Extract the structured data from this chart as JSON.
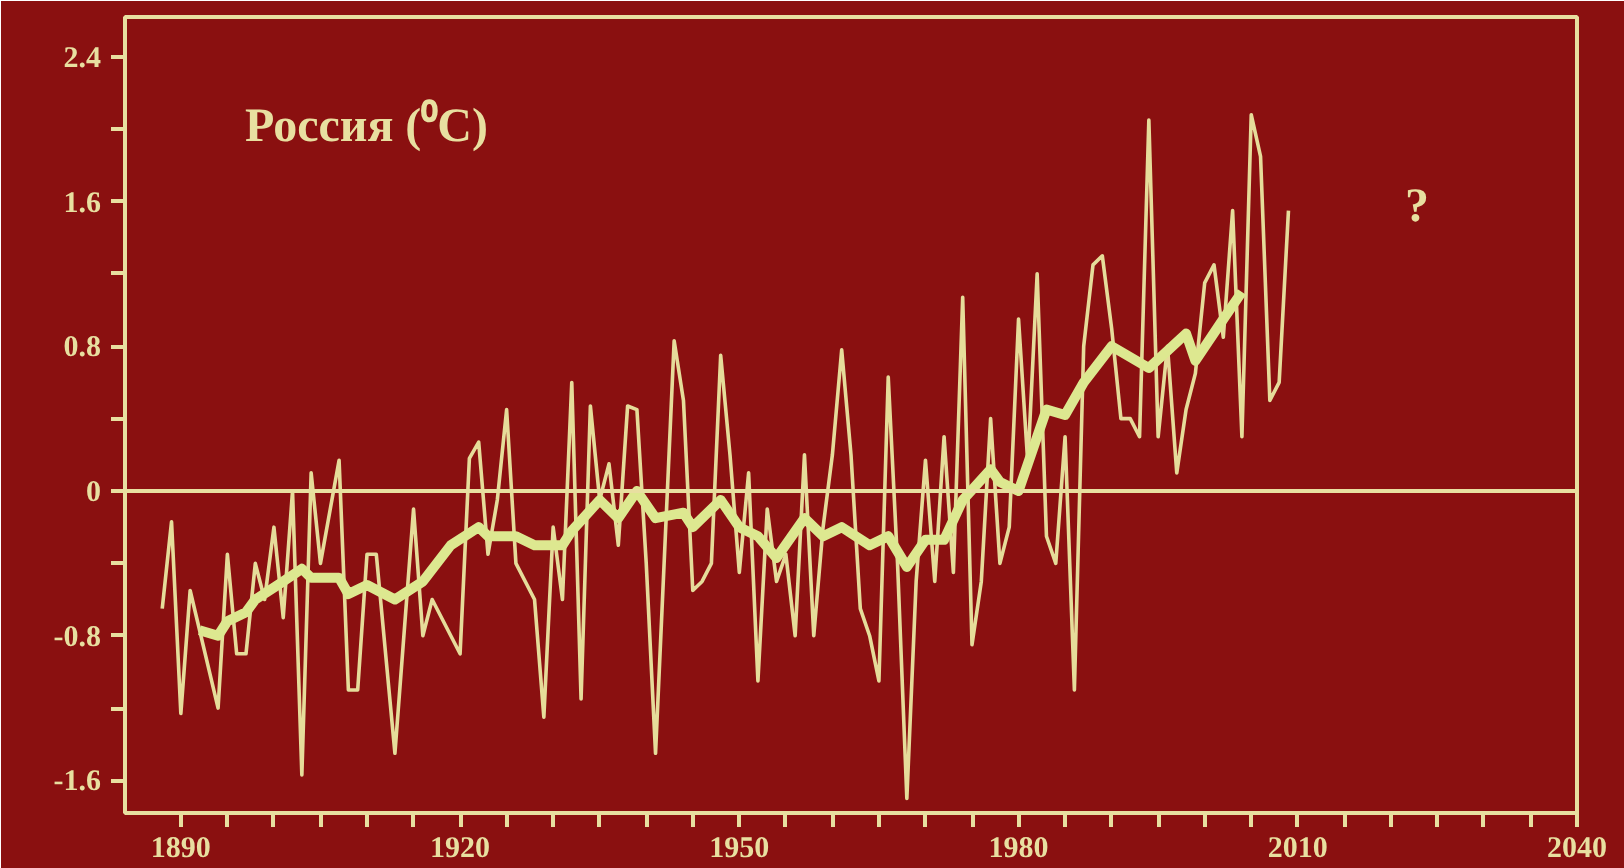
{
  "chart_data": {
    "type": "line",
    "title": "Россия (⁰C)",
    "annotations": [
      "?"
    ],
    "xlim": [
      1884,
      2040
    ],
    "ylim": [
      -1.78,
      2.62
    ],
    "xticks": [
      1890,
      {
        "value": 1895,
        "label": null
      },
      {
        "value": 1900,
        "label": null
      },
      {
        "value": 1905,
        "label": null
      },
      {
        "value": 1910,
        "label": null
      },
      {
        "value": 1915,
        "label": null
      },
      1920,
      {
        "value": 1925,
        "label": null
      },
      {
        "value": 1930,
        "label": null
      },
      {
        "value": 1935,
        "label": null
      },
      {
        "value": 1940,
        "label": null
      },
      {
        "value": 1945,
        "label": null
      },
      1950,
      {
        "value": 1955,
        "label": null
      },
      {
        "value": 1960,
        "label": null
      },
      {
        "value": 1965,
        "label": null
      },
      {
        "value": 1970,
        "label": null
      },
      {
        "value": 1975,
        "label": null
      },
      1980,
      {
        "value": 1985,
        "label": null
      },
      {
        "value": 1990,
        "label": null
      },
      {
        "value": 1995,
        "label": null
      },
      {
        "value": 2000,
        "label": null
      },
      {
        "value": 2005,
        "label": null
      },
      2010,
      {
        "value": 2015,
        "label": null
      },
      {
        "value": 2020,
        "label": null
      },
      {
        "value": 2025,
        "label": null
      },
      {
        "value": 2030,
        "label": null
      },
      {
        "value": 2035,
        "label": null
      },
      2040
    ],
    "yticks": [
      -1.6,
      {
        "value": -1.2,
        "label": null
      },
      -0.8,
      {
        "value": -0.4,
        "label": null
      },
      0,
      {
        "value": 0.4,
        "label": null
      },
      0.8,
      {
        "value": 1.2,
        "label": null
      },
      1.6,
      {
        "value": 2.0,
        "label": null
      },
      2.4
    ],
    "grid": false,
    "marker": "none",
    "line_style": "solid",
    "ref_lines": [
      {
        "axis": "y",
        "value": 0,
        "color": "#e8dfa0"
      }
    ],
    "series": [
      {
        "color": "#e6dc9a",
        "x": [
          1888,
          1889,
          1890,
          1891,
          1894,
          1895,
          1896,
          1897,
          1898,
          1899,
          1900,
          1901,
          1902,
          1903,
          1904,
          1905,
          1907,
          1908,
          1909,
          1910,
          1911,
          1913,
          1915,
          1916,
          1917,
          1920,
          1921,
          1922,
          1923,
          1924,
          1925,
          1926,
          1928,
          1929,
          1930,
          1931,
          1932,
          1933,
          1934,
          1935,
          1936,
          1937,
          1938,
          1939,
          1940,
          1941,
          1943,
          1944,
          1945,
          1946,
          1947,
          1948,
          1949,
          1950,
          1951,
          1952,
          1953,
          1954,
          1955,
          1956,
          1957,
          1958,
          1959,
          1960,
          1961,
          1962,
          1963,
          1964,
          1965,
          1966,
          1967,
          1968,
          1969,
          1970,
          1971,
          1972,
          1973,
          1974,
          1975,
          1976,
          1977,
          1978,
          1979,
          1980,
          1981,
          1982,
          1983,
          1984,
          1985,
          1986,
          1987,
          1988,
          1989,
          1990,
          1991,
          1992,
          1993,
          1994,
          1995,
          1996,
          1997,
          1998,
          1999,
          2000,
          2001,
          2002,
          2003,
          2004,
          2005,
          2006,
          2007,
          2008,
          2009
        ],
        "values": [
          -0.65,
          -0.17,
          -1.23,
          -0.55,
          -1.2,
          -0.35,
          -0.9,
          -0.9,
          -0.4,
          -0.6,
          -0.2,
          -0.7,
          0.0,
          -1.57,
          0.1,
          -0.4,
          0.17,
          -1.1,
          -1.1,
          -0.35,
          -0.35,
          -1.45,
          -0.1,
          -0.8,
          -0.6,
          -0.9,
          0.18,
          0.27,
          -0.35,
          -0.05,
          0.45,
          -0.4,
          -0.6,
          -1.25,
          -0.2,
          -0.6,
          0.6,
          -1.15,
          0.47,
          -0.05,
          0.15,
          -0.3,
          0.47,
          0.45,
          -0.4,
          -1.45,
          0.83,
          0.5,
          -0.55,
          -0.5,
          -0.4,
          0.75,
          0.2,
          -0.45,
          0.1,
          -1.05,
          -0.1,
          -0.5,
          -0.35,
          -0.8,
          0.2,
          -0.8,
          -0.2,
          0.2,
          0.78,
          0.2,
          -0.65,
          -0.8,
          -1.05,
          0.63,
          -0.4,
          -1.7,
          -0.5,
          0.17,
          -0.5,
          0.3,
          -0.45,
          1.07,
          -0.85,
          -0.5,
          0.4,
          -0.4,
          -0.2,
          0.95,
          0.15,
          1.2,
          -0.25,
          -0.4,
          0.3,
          -1.1,
          0.8,
          1.25,
          1.3,
          0.9,
          0.4,
          0.4,
          0.3,
          2.05,
          0.3,
          0.8,
          0.1,
          0.45,
          0.65,
          1.15,
          1.25,
          0.85,
          1.55,
          0.3,
          2.08,
          1.85,
          0.5,
          0.6,
          1.55
        ]
      },
      {
        "color": "#dde890",
        "x": [
          1892,
          1894,
          1895,
          1897,
          1898,
          1901,
          1903,
          1904,
          1907,
          1908,
          1910,
          1913,
          1916,
          1919,
          1922,
          1923,
          1926,
          1928,
          1931,
          1932,
          1935,
          1937,
          1939,
          1941,
          1944,
          1945,
          1948,
          1950,
          1952,
          1954,
          1957,
          1959,
          1961,
          1964,
          1966,
          1968,
          1970,
          1972,
          1974,
          1977,
          1978,
          1980,
          1983,
          1985,
          1987,
          1990,
          1994,
          1998,
          1999,
          2002,
          2004
        ],
        "values": [
          -0.77,
          -0.8,
          -0.72,
          -0.67,
          -0.6,
          -0.5,
          -0.43,
          -0.48,
          -0.48,
          -0.57,
          -0.52,
          -0.6,
          -0.5,
          -0.3,
          -0.2,
          -0.25,
          -0.25,
          -0.3,
          -0.3,
          -0.22,
          -0.05,
          -0.15,
          0.0,
          -0.15,
          -0.12,
          -0.2,
          -0.05,
          -0.2,
          -0.25,
          -0.37,
          -0.15,
          -0.25,
          -0.2,
          -0.3,
          -0.25,
          -0.42,
          -0.27,
          -0.27,
          -0.05,
          0.12,
          0.05,
          0.0,
          0.45,
          0.42,
          0.6,
          0.8,
          0.68,
          0.87,
          0.72,
          0.95,
          1.1
        ]
      }
    ]
  }
}
